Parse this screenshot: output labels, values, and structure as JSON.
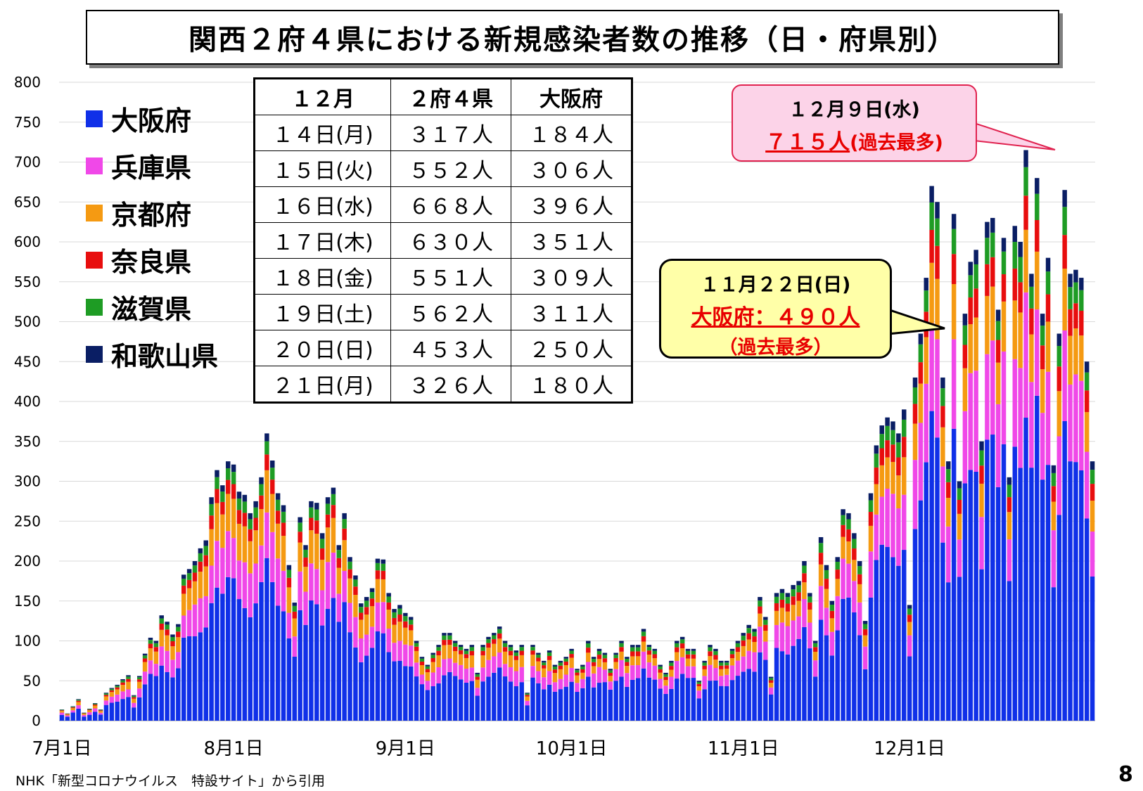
{
  "title": "関西２府４県における新規感染者数の推移（日・府県別）",
  "legend": [
    {
      "label": "大阪府",
      "color": "#1030e8"
    },
    {
      "label": "兵庫県",
      "color": "#f048e8"
    },
    {
      "label": "京都府",
      "color": "#f59a12"
    },
    {
      "label": "奈良県",
      "color": "#e80e0e"
    },
    {
      "label": "滋賀県",
      "color": "#1e9c24"
    },
    {
      "label": "和歌山県",
      "color": "#0a1e64"
    }
  ],
  "table": {
    "headers": [
      "１２月",
      "２府４県",
      "大阪府"
    ],
    "rows": [
      [
        "１４日(月)",
        "３１７人",
        "１８４人"
      ],
      [
        "１５日(火)",
        "５５２人",
        "３０６人"
      ],
      [
        "１６日(水)",
        "６６８人",
        "３９６人"
      ],
      [
        "１７日(木)",
        "６３０人",
        "３５１人"
      ],
      [
        "１８日(金)",
        "５５１人",
        "３０９人"
      ],
      [
        "１９日(土)",
        "５６２人",
        "３１１人"
      ],
      [
        "２０日(日)",
        "４５３人",
        "２５０人"
      ],
      [
        "２１日(月)",
        "３２６人",
        "１８０人"
      ]
    ]
  },
  "callout_pink": {
    "line1": "１２月９日(水)",
    "line2a": "７１５人",
    "line2b": "(過去最多)"
  },
  "callout_yellow": {
    "line1": "１１月２２日(日)",
    "line2": "大阪府：４９０人",
    "line3": "（過去最多）"
  },
  "footer": "NHK「新型コロナウイルス　特設サイト」から引用",
  "page_number": "8",
  "chart_data": {
    "type": "bar",
    "stacked": true,
    "y_ticks": [
      0,
      50,
      100,
      150,
      200,
      250,
      300,
      350,
      400,
      450,
      500,
      550,
      600,
      650,
      700,
      750,
      800
    ],
    "ylim": [
      0,
      800
    ],
    "x_labels": [
      {
        "label": "7月1日",
        "index": 0
      },
      {
        "label": "8月1日",
        "index": 31
      },
      {
        "label": "9月1日",
        "index": 62
      },
      {
        "label": "10月1日",
        "index": 92
      },
      {
        "label": "11月1日",
        "index": 123
      },
      {
        "label": "12月1日",
        "index": 153
      }
    ],
    "series_names": [
      "大阪府",
      "兵庫県",
      "京都府",
      "奈良県",
      "滋賀県",
      "和歌山県"
    ],
    "totals": [
      14,
      9,
      18,
      27,
      10,
      15,
      22,
      14,
      35,
      41,
      45,
      52,
      57,
      32,
      56,
      84,
      104,
      100,
      132,
      124,
      108,
      121,
      183,
      190,
      200,
      216,
      226,
      280,
      314,
      295,
      325,
      321,
      287,
      283,
      260,
      275,
      305,
      360,
      326,
      285,
      270,
      195,
      148,
      255,
      220,
      275,
      273,
      235,
      280,
      292,
      220,
      260,
      205,
      182,
      147,
      155,
      166,
      203,
      202,
      160,
      140,
      145,
      135,
      130,
      100,
      80,
      70,
      85,
      95,
      110,
      110,
      100,
      95,
      90,
      95,
      60,
      95,
      105,
      110,
      118,
      100,
      95,
      88,
      95,
      35,
      95,
      85,
      75,
      88,
      70,
      75,
      80,
      90,
      65,
      70,
      100,
      80,
      90,
      85,
      65,
      85,
      100,
      80,
      95,
      95,
      115,
      95,
      90,
      70,
      60,
      75,
      100,
      105,
      90,
      90,
      50,
      75,
      95,
      90,
      75,
      75,
      90,
      100,
      110,
      120,
      115,
      155,
      130,
      55,
      160,
      165,
      160,
      170,
      175,
      200,
      160,
      100,
      230,
      195,
      150,
      205,
      265,
      260,
      235,
      200,
      125,
      285,
      345,
      370,
      380,
      375,
      360,
      390,
      145,
      430,
      485,
      555,
      670,
      650,
      430,
      325,
      635,
      300,
      510,
      575,
      590,
      350,
      625,
      630,
      515,
      605,
      305,
      620,
      600,
      715,
      560,
      680,
      510,
      580,
      320,
      485,
      665,
      560,
      565,
      555,
      450,
      325
    ]
  }
}
